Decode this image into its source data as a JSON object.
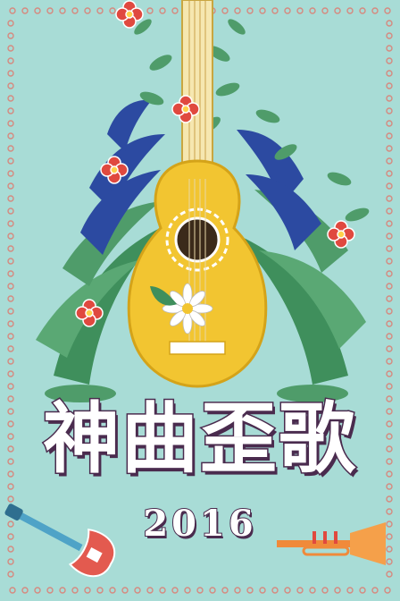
{
  "poster": {
    "title": "神曲歪歌",
    "year": "2016"
  },
  "colors": {
    "background": "#a8dcd6",
    "guitar_body": "#f2c531",
    "leaf_green": "#4f9c6a",
    "leaf_blue": "#2c4aa1",
    "flower_red": "#e0493f",
    "title_outline": "#4a2b4e"
  },
  "icons": [
    "guitar-icon",
    "ukulele-icon",
    "trumpet-icon",
    "flower-icon",
    "leaf-icon"
  ]
}
